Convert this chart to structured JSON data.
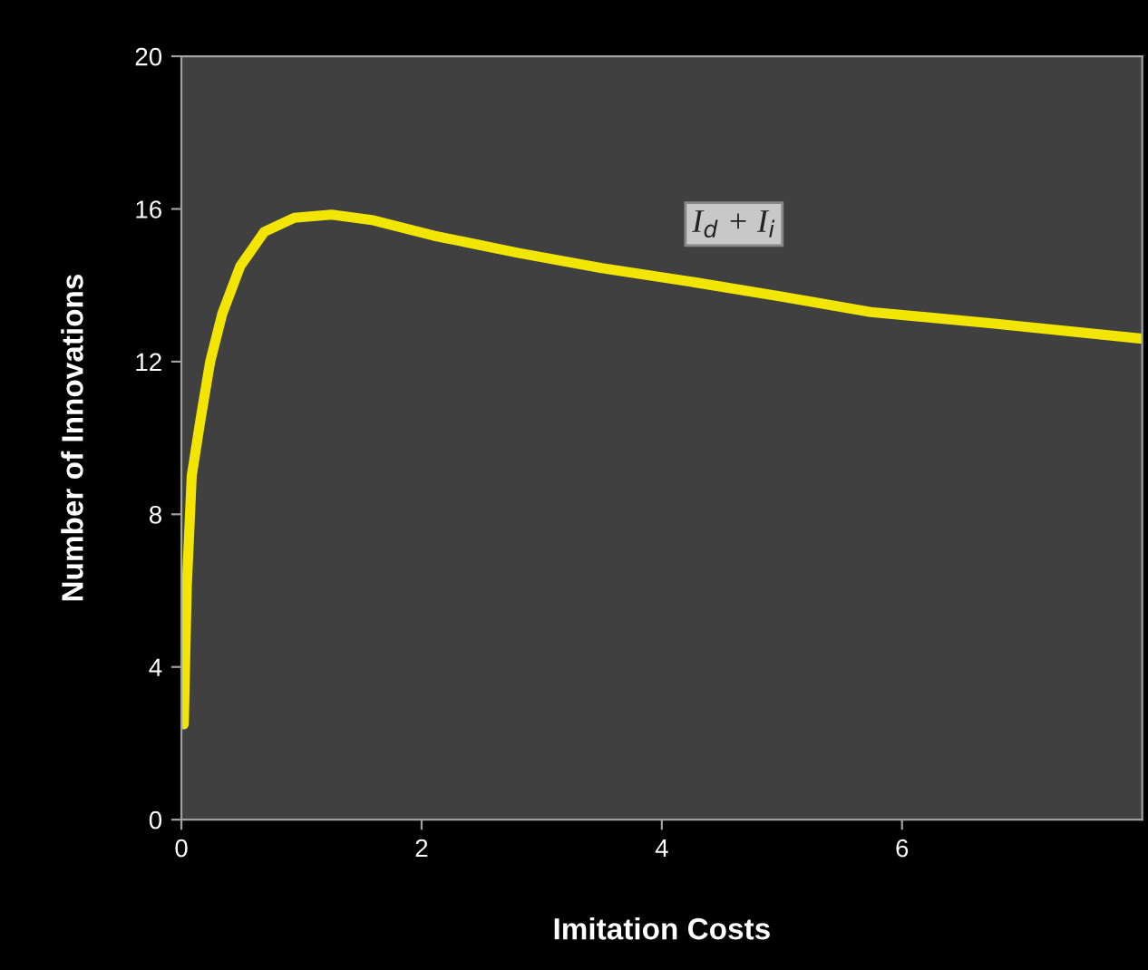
{
  "chart_data": {
    "type": "line",
    "xlabel": "Imitation Costs",
    "ylabel": "Number of Innovations",
    "series": [
      {
        "color": "#f2e600",
        "x": [
          0.02,
          0.045,
          0.086,
          0.16,
          0.24,
          0.34,
          0.49,
          0.69,
          0.94,
          1.25,
          1.6,
          2.1,
          2.8,
          3.5,
          4.23,
          5.0,
          5.74,
          6.75,
          8.0
        ],
        "values": [
          2.5,
          6.1,
          9.0,
          10.5,
          12.0,
          13.25,
          14.5,
          15.4,
          15.77,
          15.85,
          15.7,
          15.3,
          14.85,
          14.45,
          14.1,
          13.7,
          13.3,
          13.0,
          12.6
        ]
      }
    ],
    "annotations": [
      "I$_{d}$ + I$_{i}$"
    ],
    "xlim": [
      0,
      8
    ],
    "xticks": [
      0,
      2,
      4,
      6
    ],
    "ylim": [
      0,
      20
    ],
    "yticks": [
      0,
      4,
      8,
      12,
      16,
      20
    ],
    "grid": false,
    "legend": false,
    "marker": "none",
    "line_style": "solid"
  }
}
